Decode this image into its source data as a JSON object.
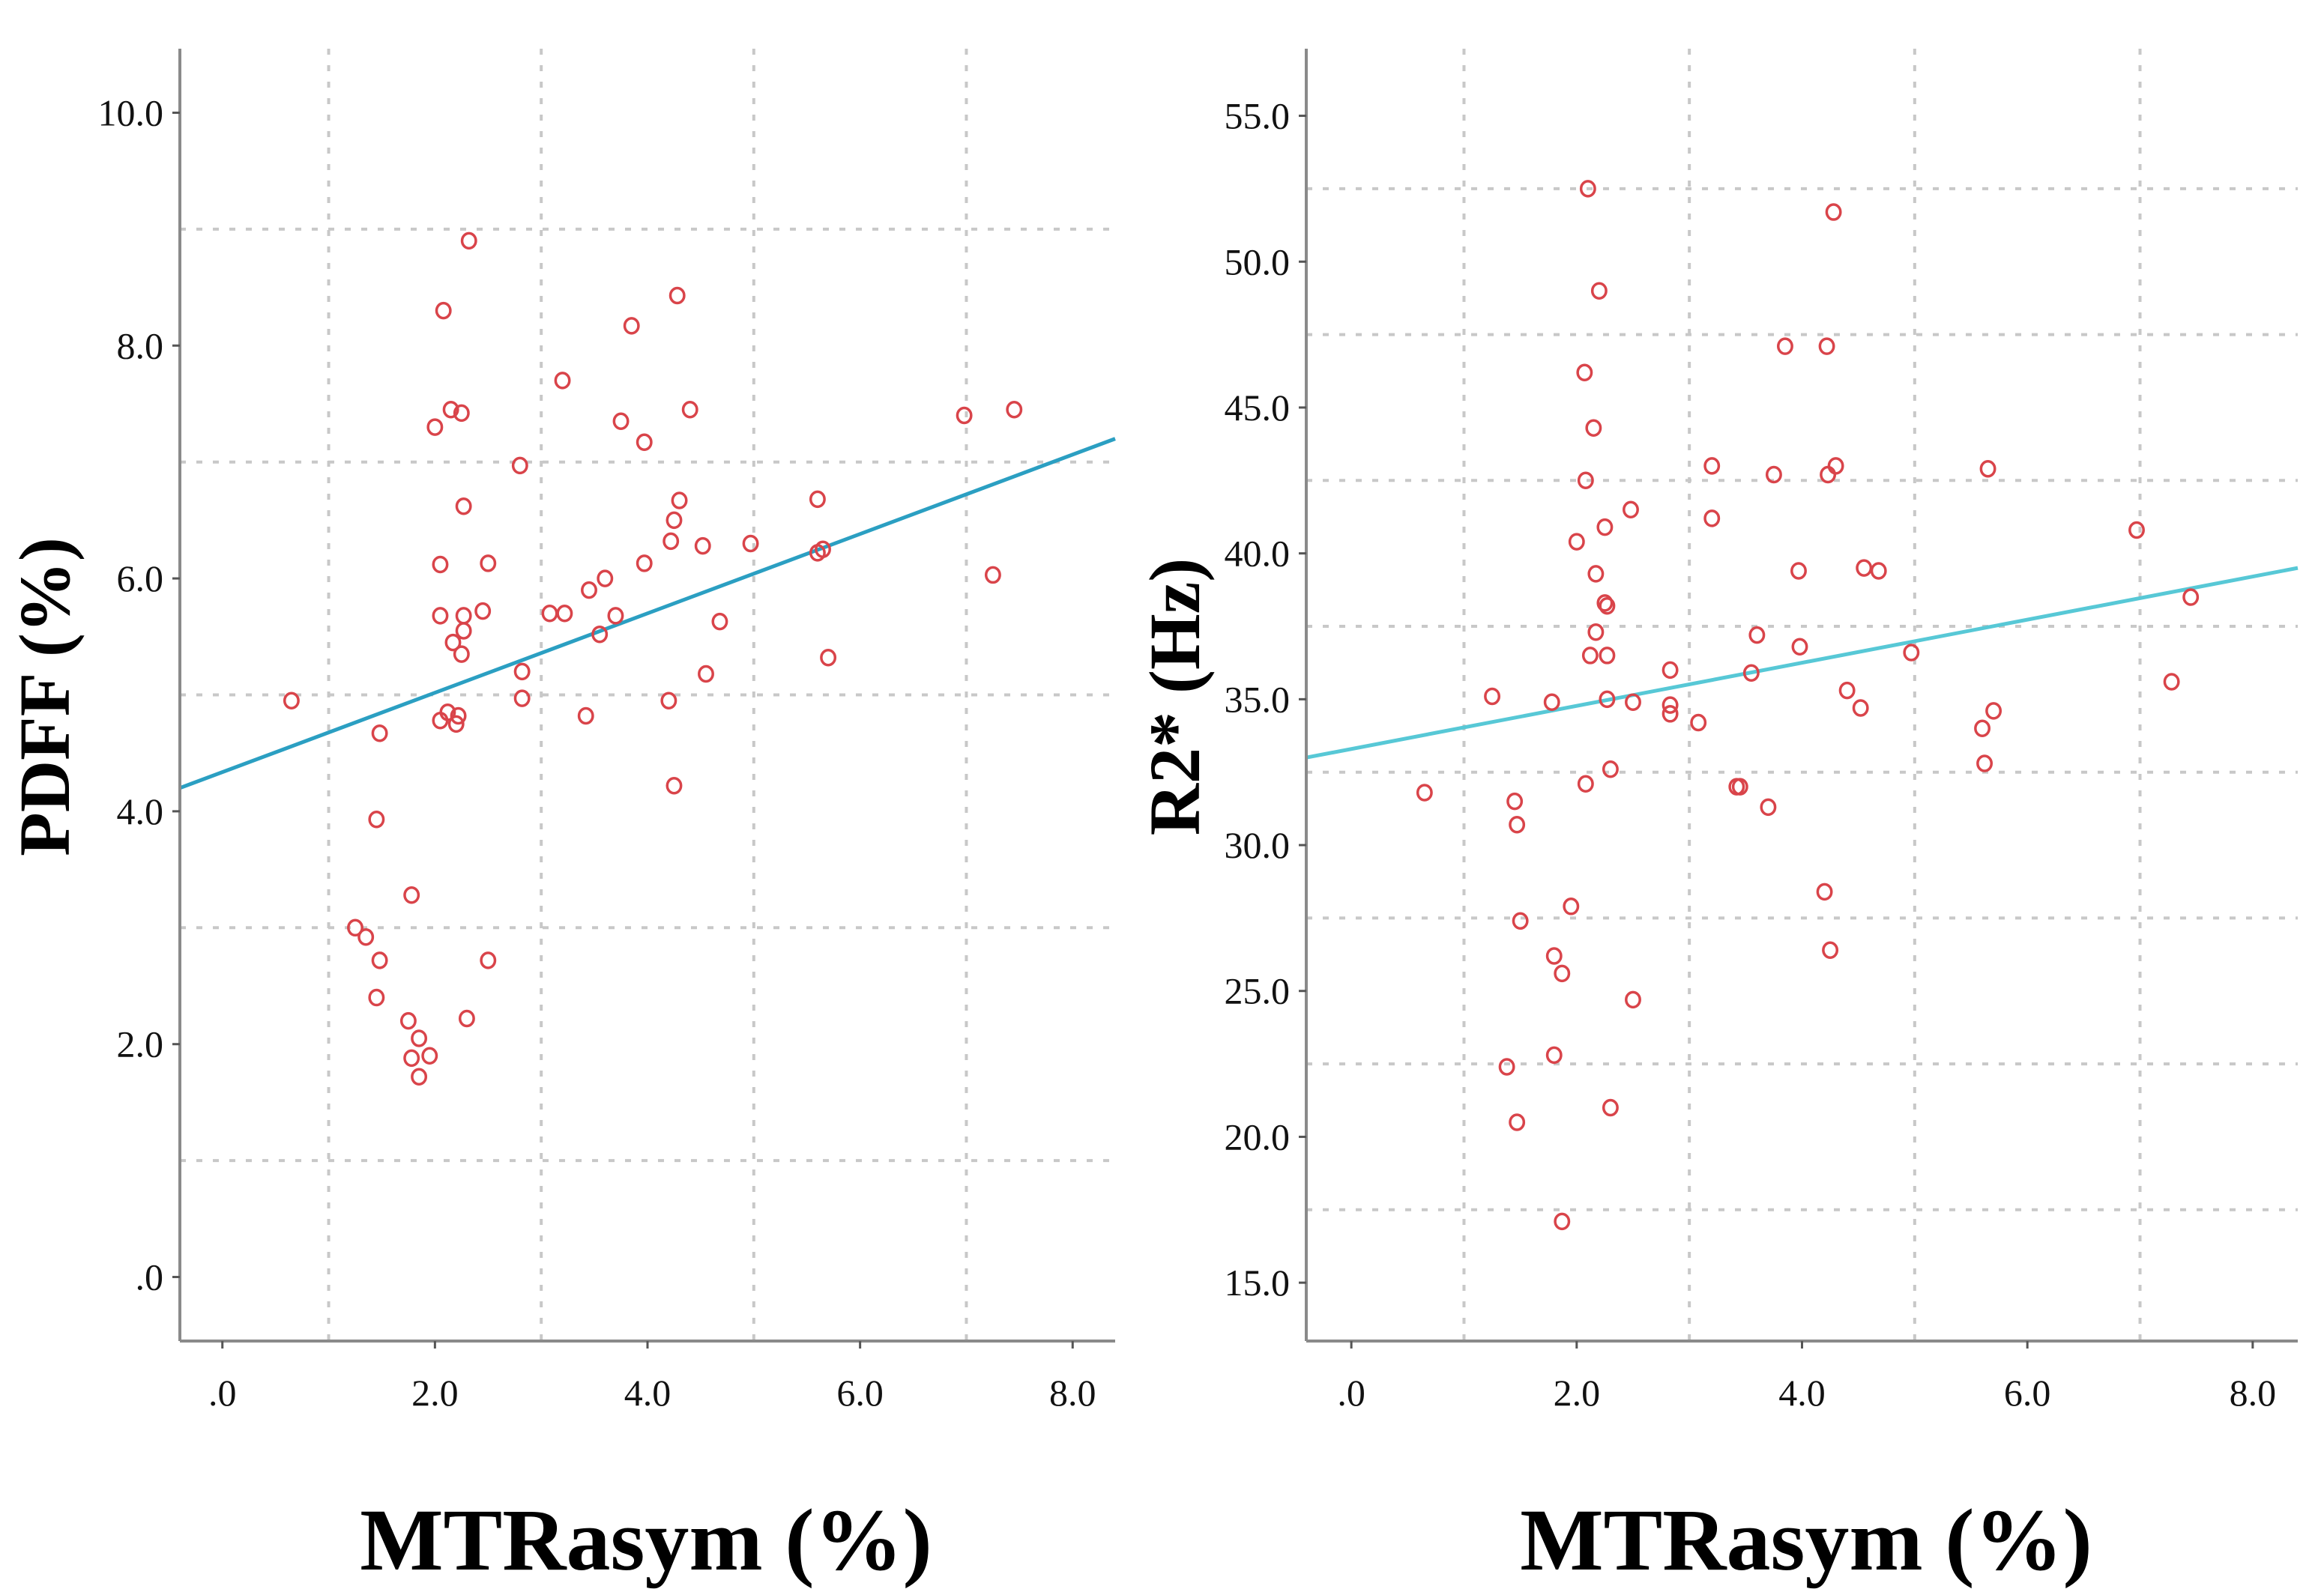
{
  "chart_data": [
    {
      "type": "scatter",
      "name": "left",
      "xlabel": "MTRasym (%)",
      "ylabel": "PDFF (%)",
      "xlim": [
        -0.4,
        8.4
      ],
      "ylim": [
        -0.55,
        10.55
      ],
      "xticks": [
        ".0",
        "2.0",
        "4.0",
        "6.0",
        "8.0"
      ],
      "xtick_values": [
        0,
        2,
        4,
        6,
        8
      ],
      "yticks": [
        ".0",
        "2.0",
        "4.0",
        "6.0",
        "8.0",
        "10.0"
      ],
      "ytick_values": [
        0,
        2,
        4,
        6,
        8,
        10
      ],
      "x_grid": [
        1,
        3,
        5,
        7
      ],
      "y_grid": [
        1,
        3,
        5,
        7,
        9
      ],
      "point_color": "#d9444a",
      "line_color": "#2b9fc2",
      "fit_line": {
        "x0": -0.4,
        "y0": 4.2,
        "x1": 8.4,
        "y1": 7.2
      },
      "points": [
        {
          "x": 0.65,
          "y": 4.95
        },
        {
          "x": 1.25,
          "y": 3.0
        },
        {
          "x": 1.35,
          "y": 2.92
        },
        {
          "x": 1.45,
          "y": 3.93
        },
        {
          "x": 1.48,
          "y": 4.67
        },
        {
          "x": 1.48,
          "y": 2.72
        },
        {
          "x": 1.45,
          "y": 2.4
        },
        {
          "x": 1.75,
          "y": 2.2
        },
        {
          "x": 1.78,
          "y": 3.28
        },
        {
          "x": 1.78,
          "y": 1.88
        },
        {
          "x": 1.85,
          "y": 2.05
        },
        {
          "x": 1.85,
          "y": 1.72
        },
        {
          "x": 1.95,
          "y": 1.9
        },
        {
          "x": 2.0,
          "y": 7.3
        },
        {
          "x": 2.05,
          "y": 6.12
        },
        {
          "x": 2.05,
          "y": 5.68
        },
        {
          "x": 2.05,
          "y": 4.78
        },
        {
          "x": 2.08,
          "y": 8.3
        },
        {
          "x": 2.12,
          "y": 4.85
        },
        {
          "x": 2.15,
          "y": 7.45
        },
        {
          "x": 2.17,
          "y": 5.45
        },
        {
          "x": 2.2,
          "y": 4.75
        },
        {
          "x": 2.22,
          "y": 4.82
        },
        {
          "x": 2.25,
          "y": 7.42
        },
        {
          "x": 2.25,
          "y": 5.35
        },
        {
          "x": 2.27,
          "y": 5.55
        },
        {
          "x": 2.27,
          "y": 5.68
        },
        {
          "x": 2.27,
          "y": 6.62
        },
        {
          "x": 2.3,
          "y": 2.22
        },
        {
          "x": 2.32,
          "y": 8.9
        },
        {
          "x": 2.45,
          "y": 5.72
        },
        {
          "x": 2.5,
          "y": 6.13
        },
        {
          "x": 2.5,
          "y": 2.72
        },
        {
          "x": 2.8,
          "y": 6.97
        },
        {
          "x": 2.82,
          "y": 5.2
        },
        {
          "x": 2.82,
          "y": 4.97
        },
        {
          "x": 3.08,
          "y": 5.7
        },
        {
          "x": 3.2,
          "y": 7.7
        },
        {
          "x": 3.22,
          "y": 5.7
        },
        {
          "x": 3.42,
          "y": 4.82
        },
        {
          "x": 3.45,
          "y": 5.9
        },
        {
          "x": 3.55,
          "y": 5.52
        },
        {
          "x": 3.6,
          "y": 6.0
        },
        {
          "x": 3.7,
          "y": 5.68
        },
        {
          "x": 3.75,
          "y": 7.35
        },
        {
          "x": 3.85,
          "y": 8.17
        },
        {
          "x": 3.97,
          "y": 6.13
        },
        {
          "x": 3.97,
          "y": 7.17
        },
        {
          "x": 4.2,
          "y": 4.95
        },
        {
          "x": 4.22,
          "y": 6.32
        },
        {
          "x": 4.25,
          "y": 6.5
        },
        {
          "x": 4.25,
          "y": 4.22
        },
        {
          "x": 4.28,
          "y": 8.43
        },
        {
          "x": 4.3,
          "y": 6.67
        },
        {
          "x": 4.4,
          "y": 7.45
        },
        {
          "x": 4.52,
          "y": 6.28
        },
        {
          "x": 4.55,
          "y": 5.18
        },
        {
          "x": 4.68,
          "y": 5.63
        },
        {
          "x": 4.97,
          "y": 6.3
        },
        {
          "x": 5.6,
          "y": 6.68
        },
        {
          "x": 5.6,
          "y": 6.22
        },
        {
          "x": 5.65,
          "y": 6.25
        },
        {
          "x": 5.7,
          "y": 5.32
        },
        {
          "x": 6.98,
          "y": 7.4
        },
        {
          "x": 7.25,
          "y": 6.03
        },
        {
          "x": 7.45,
          "y": 7.45
        }
      ]
    },
    {
      "type": "scatter",
      "name": "right",
      "xlabel": "MTRasym (%)",
      "ylabel": "R2* (Hz)",
      "xlim": [
        -0.4,
        8.4
      ],
      "ylim": [
        13.0,
        57.3
      ],
      "xticks": [
        ".0",
        "2.0",
        "4.0",
        "6.0",
        "8.0"
      ],
      "xtick_values": [
        0,
        2,
        4,
        6,
        8
      ],
      "yticks": [
        "15.0",
        "20.0",
        "25.0",
        "30.0",
        "35.0",
        "40.0",
        "45.0",
        "50.0",
        "55.0"
      ],
      "ytick_values": [
        15,
        20,
        25,
        30,
        35,
        40,
        45,
        50,
        55
      ],
      "x_grid": [
        1,
        3,
        5,
        7
      ],
      "y_grid": [
        17.5,
        22.5,
        27.5,
        32.5,
        37.5,
        42.5,
        47.5,
        52.5
      ],
      "point_color": "#d9444a",
      "line_color": "#57c8d6",
      "fit_line": {
        "x0": -0.4,
        "y0": 33.0,
        "x1": 8.4,
        "y1": 39.5
      },
      "points": [
        {
          "x": 0.65,
          "y": 31.8
        },
        {
          "x": 1.25,
          "y": 35.1
        },
        {
          "x": 1.38,
          "y": 22.4
        },
        {
          "x": 1.45,
          "y": 31.5
        },
        {
          "x": 1.47,
          "y": 30.7
        },
        {
          "x": 1.47,
          "y": 20.5
        },
        {
          "x": 1.5,
          "y": 27.4
        },
        {
          "x": 1.78,
          "y": 34.9
        },
        {
          "x": 1.8,
          "y": 26.2
        },
        {
          "x": 1.8,
          "y": 22.8
        },
        {
          "x": 1.87,
          "y": 25.6
        },
        {
          "x": 1.87,
          "y": 17.1
        },
        {
          "x": 1.95,
          "y": 27.9
        },
        {
          "x": 2.0,
          "y": 40.4
        },
        {
          "x": 2.07,
          "y": 46.2
        },
        {
          "x": 2.08,
          "y": 42.5
        },
        {
          "x": 2.08,
          "y": 32.1
        },
        {
          "x": 2.1,
          "y": 52.5
        },
        {
          "x": 2.12,
          "y": 36.5
        },
        {
          "x": 2.15,
          "y": 44.3
        },
        {
          "x": 2.17,
          "y": 37.3
        },
        {
          "x": 2.17,
          "y": 39.3
        },
        {
          "x": 2.2,
          "y": 49.0
        },
        {
          "x": 2.25,
          "y": 40.9
        },
        {
          "x": 2.25,
          "y": 38.3
        },
        {
          "x": 2.27,
          "y": 38.2
        },
        {
          "x": 2.27,
          "y": 36.5
        },
        {
          "x": 2.27,
          "y": 35.0
        },
        {
          "x": 2.3,
          "y": 32.6
        },
        {
          "x": 2.3,
          "y": 21.0
        },
        {
          "x": 2.48,
          "y": 41.5
        },
        {
          "x": 2.5,
          "y": 34.9
        },
        {
          "x": 2.5,
          "y": 24.7
        },
        {
          "x": 2.83,
          "y": 36.0
        },
        {
          "x": 2.83,
          "y": 34.8
        },
        {
          "x": 2.83,
          "y": 34.5
        },
        {
          "x": 3.08,
          "y": 34.2
        },
        {
          "x": 3.2,
          "y": 43.0
        },
        {
          "x": 3.2,
          "y": 41.2
        },
        {
          "x": 3.42,
          "y": 32.0
        },
        {
          "x": 3.45,
          "y": 32.0
        },
        {
          "x": 3.55,
          "y": 35.9
        },
        {
          "x": 3.6,
          "y": 37.2
        },
        {
          "x": 3.7,
          "y": 31.3
        },
        {
          "x": 3.75,
          "y": 42.7
        },
        {
          "x": 3.85,
          "y": 47.1
        },
        {
          "x": 3.97,
          "y": 39.4
        },
        {
          "x": 3.98,
          "y": 36.8
        },
        {
          "x": 4.2,
          "y": 28.4
        },
        {
          "x": 4.22,
          "y": 47.1
        },
        {
          "x": 4.23,
          "y": 42.7
        },
        {
          "x": 4.25,
          "y": 26.4
        },
        {
          "x": 4.28,
          "y": 51.7
        },
        {
          "x": 4.3,
          "y": 43.0
        },
        {
          "x": 4.4,
          "y": 35.3
        },
        {
          "x": 4.52,
          "y": 34.7
        },
        {
          "x": 4.55,
          "y": 39.5
        },
        {
          "x": 4.68,
          "y": 39.4
        },
        {
          "x": 4.97,
          "y": 36.6
        },
        {
          "x": 5.6,
          "y": 34.0
        },
        {
          "x": 5.62,
          "y": 32.8
        },
        {
          "x": 5.65,
          "y": 42.9
        },
        {
          "x": 5.7,
          "y": 34.6
        },
        {
          "x": 6.97,
          "y": 40.8
        },
        {
          "x": 7.28,
          "y": 35.6
        },
        {
          "x": 7.45,
          "y": 38.5
        }
      ]
    }
  ]
}
